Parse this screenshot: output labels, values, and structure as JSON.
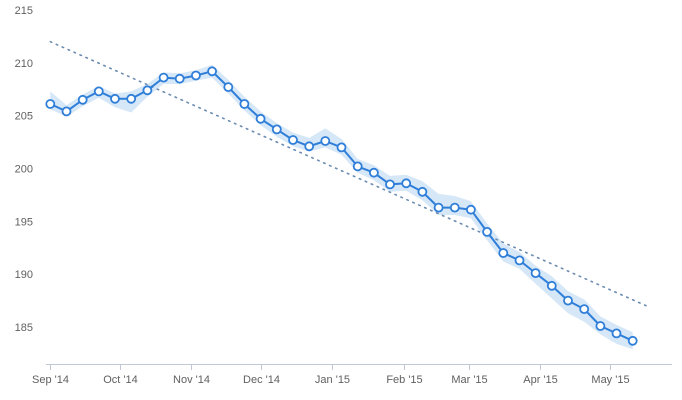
{
  "colors": {
    "series": "#2f7ed8",
    "band": "#d6e7f8",
    "trend": "#6b8bb0",
    "axis": "#c0c8d6",
    "tick_text": "#606060"
  },
  "chart_data": {
    "type": "line",
    "title": "",
    "xlabel": "",
    "ylabel": "",
    "ylim": [
      181.5,
      215
    ],
    "xlim": [
      "2014-08-31",
      "2015-05-28"
    ],
    "grid": false,
    "legend": "none",
    "y_ticks": [
      185,
      190,
      195,
      200,
      205,
      210,
      215
    ],
    "x_ticks": [
      {
        "date": "2014-09-01",
        "label": "Sep '14"
      },
      {
        "date": "2014-10-01",
        "label": "Oct '14"
      },
      {
        "date": "2014-11-01",
        "label": "Nov '14"
      },
      {
        "date": "2014-12-01",
        "label": "Dec '14"
      },
      {
        "date": "2015-01-01",
        "label": "Jan '15"
      },
      {
        "date": "2015-02-01",
        "label": "Feb '15"
      },
      {
        "date": "2015-03-01",
        "label": "Mar '15"
      },
      {
        "date": "2015-04-01",
        "label": "Apr '15"
      },
      {
        "date": "2015-05-01",
        "label": "May '15"
      }
    ],
    "series": [
      {
        "type": "line",
        "markers": true,
        "points": [
          {
            "x": "2014-09-01",
            "y": 206.1
          },
          {
            "x": "2014-09-08",
            "y": 205.4
          },
          {
            "x": "2014-09-15",
            "y": 206.5
          },
          {
            "x": "2014-09-22",
            "y": 207.3
          },
          {
            "x": "2014-09-29",
            "y": 206.6
          },
          {
            "x": "2014-10-06",
            "y": 206.6
          },
          {
            "x": "2014-10-13",
            "y": 207.4
          },
          {
            "x": "2014-10-20",
            "y": 208.6
          },
          {
            "x": "2014-10-27",
            "y": 208.5
          },
          {
            "x": "2014-11-03",
            "y": 208.8
          },
          {
            "x": "2014-11-10",
            "y": 209.2
          },
          {
            "x": "2014-11-17",
            "y": 207.7
          },
          {
            "x": "2014-11-24",
            "y": 206.1
          },
          {
            "x": "2014-12-01",
            "y": 204.7
          },
          {
            "x": "2014-12-08",
            "y": 203.7
          },
          {
            "x": "2014-12-15",
            "y": 202.7
          },
          {
            "x": "2014-12-22",
            "y": 202.1
          },
          {
            "x": "2014-12-29",
            "y": 202.6
          },
          {
            "x": "2015-01-05",
            "y": 202.0
          },
          {
            "x": "2015-01-12",
            "y": 200.2
          },
          {
            "x": "2015-01-19",
            "y": 199.6
          },
          {
            "x": "2015-01-26",
            "y": 198.5
          },
          {
            "x": "2015-02-02",
            "y": 198.6
          },
          {
            "x": "2015-02-09",
            "y": 197.8
          },
          {
            "x": "2015-02-16",
            "y": 196.3
          },
          {
            "x": "2015-02-23",
            "y": 196.3
          },
          {
            "x": "2015-03-02",
            "y": 196.1
          },
          {
            "x": "2015-03-09",
            "y": 194.0
          },
          {
            "x": "2015-03-16",
            "y": 192.0
          },
          {
            "x": "2015-03-23",
            "y": 191.3
          },
          {
            "x": "2015-03-30",
            "y": 190.1
          },
          {
            "x": "2015-04-06",
            "y": 188.9
          },
          {
            "x": "2015-04-13",
            "y": 187.5
          },
          {
            "x": "2015-04-20",
            "y": 186.7
          },
          {
            "x": "2015-04-27",
            "y": 185.1
          },
          {
            "x": "2015-05-04",
            "y": 184.4
          },
          {
            "x": "2015-05-11",
            "y": 183.7
          }
        ]
      },
      {
        "type": "arearange",
        "points": [
          {
            "x": "2014-09-01",
            "low": 205.6,
            "high": 207.3
          },
          {
            "x": "2014-09-08",
            "low": 204.9,
            "high": 206.0
          },
          {
            "x": "2014-09-15",
            "low": 205.9,
            "high": 207.0
          },
          {
            "x": "2014-09-22",
            "low": 206.7,
            "high": 207.8
          },
          {
            "x": "2014-09-29",
            "low": 205.8,
            "high": 207.1
          },
          {
            "x": "2014-10-06",
            "low": 205.3,
            "high": 207.3
          },
          {
            "x": "2014-10-13",
            "low": 206.8,
            "high": 208.0
          },
          {
            "x": "2014-10-20",
            "low": 208.0,
            "high": 209.1
          },
          {
            "x": "2014-10-27",
            "low": 208.0,
            "high": 209.0
          },
          {
            "x": "2014-11-03",
            "low": 208.3,
            "high": 209.3
          },
          {
            "x": "2014-11-10",
            "low": 208.6,
            "high": 209.8
          },
          {
            "x": "2014-11-17",
            "low": 207.1,
            "high": 208.4
          },
          {
            "x": "2014-11-24",
            "low": 205.5,
            "high": 206.8
          },
          {
            "x": "2014-12-01",
            "low": 204.1,
            "high": 205.4
          },
          {
            "x": "2014-12-08",
            "low": 203.0,
            "high": 204.3
          },
          {
            "x": "2014-12-15",
            "low": 202.1,
            "high": 203.4
          },
          {
            "x": "2014-12-22",
            "low": 201.6,
            "high": 202.9
          },
          {
            "x": "2014-12-29",
            "low": 202.0,
            "high": 203.8
          },
          {
            "x": "2015-01-05",
            "low": 201.3,
            "high": 202.8
          },
          {
            "x": "2015-01-12",
            "low": 199.6,
            "high": 200.9
          },
          {
            "x": "2015-01-19",
            "low": 198.9,
            "high": 200.3
          },
          {
            "x": "2015-01-26",
            "low": 197.8,
            "high": 199.3
          },
          {
            "x": "2015-02-02",
            "low": 197.9,
            "high": 199.4
          },
          {
            "x": "2015-02-09",
            "low": 197.0,
            "high": 198.8
          },
          {
            "x": "2015-02-16",
            "low": 195.6,
            "high": 197.6
          },
          {
            "x": "2015-02-23",
            "low": 195.6,
            "high": 197.4
          },
          {
            "x": "2015-03-02",
            "low": 195.3,
            "high": 196.9
          },
          {
            "x": "2015-03-09",
            "low": 193.2,
            "high": 194.8
          },
          {
            "x": "2015-03-16",
            "low": 191.2,
            "high": 192.9
          },
          {
            "x": "2015-03-23",
            "low": 190.5,
            "high": 192.1
          },
          {
            "x": "2015-03-30",
            "low": 189.1,
            "high": 190.8
          },
          {
            "x": "2015-04-06",
            "low": 187.7,
            "high": 189.8
          },
          {
            "x": "2015-04-13",
            "low": 186.3,
            "high": 188.4
          },
          {
            "x": "2015-04-20",
            "low": 185.5,
            "high": 187.6
          },
          {
            "x": "2015-04-27",
            "low": 184.3,
            "high": 186.0
          },
          {
            "x": "2015-05-04",
            "low": 183.4,
            "high": 185.2
          },
          {
            "x": "2015-05-11",
            "low": 182.9,
            "high": 184.5
          }
        ]
      },
      {
        "type": "trend",
        "style": "dotted",
        "points": [
          {
            "x": "2014-09-01",
            "y": 212.0
          },
          {
            "x": "2015-05-18",
            "y": 186.9
          }
        ]
      }
    ]
  }
}
